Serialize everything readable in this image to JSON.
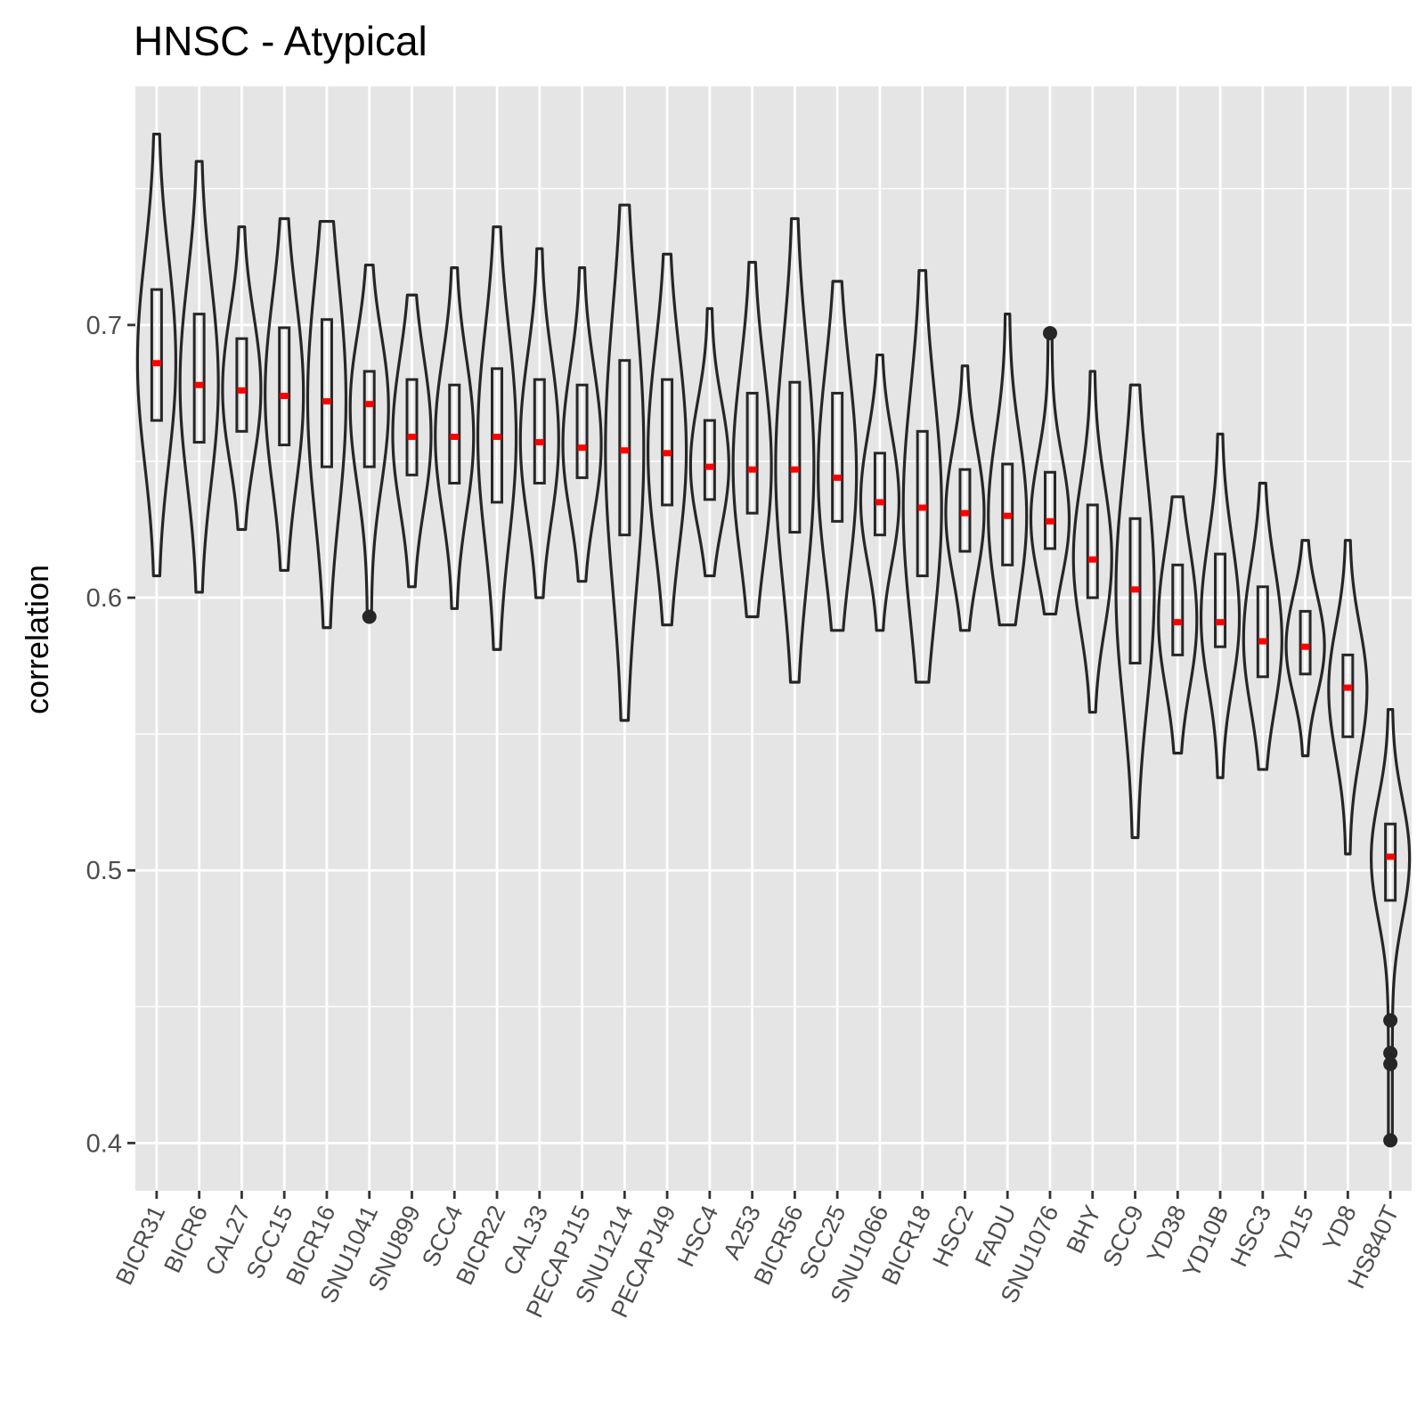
{
  "chart_data": {
    "type": "violin",
    "title": "HNSC - Atypical",
    "xlabel": "",
    "ylabel": "correlation",
    "ylim": [
      0.3825,
      0.7875
    ],
    "yticks": [
      0.4,
      0.5,
      0.6,
      0.7
    ],
    "ytick_labels": [
      "0.4",
      "0.5",
      "0.6",
      "0.7"
    ],
    "grid": true,
    "colors": {
      "panel": "#e5e5e5",
      "grid": "#ffffff",
      "outline": "#262626",
      "median": "#ff0000",
      "tick_text": "#4d4d4d"
    },
    "categories": [
      "BICR31",
      "BICR6",
      "CAL27",
      "SCC15",
      "BICR16",
      "SNU1041",
      "SNU899",
      "SCC4",
      "BICR22",
      "CAL33",
      "PECAPJ15",
      "SNU1214",
      "PECAPJ49",
      "HSC4",
      "A253",
      "BICR56",
      "SCC25",
      "SNU1066",
      "BICR18",
      "HSC2",
      "FADU",
      "SNU1076",
      "BHY",
      "SCC9",
      "YD38",
      "YD10B",
      "HSC3",
      "YD15",
      "YD8",
      "HS840T"
    ],
    "series": [
      {
        "min": 0.608,
        "max": 0.77,
        "q1": 0.665,
        "median": 0.686,
        "q3": 0.713,
        "outliers": []
      },
      {
        "min": 0.602,
        "max": 0.76,
        "q1": 0.657,
        "median": 0.678,
        "q3": 0.704,
        "outliers": []
      },
      {
        "min": 0.625,
        "max": 0.736,
        "q1": 0.661,
        "median": 0.676,
        "q3": 0.695,
        "outliers": []
      },
      {
        "min": 0.61,
        "max": 0.739,
        "q1": 0.656,
        "median": 0.674,
        "q3": 0.699,
        "outliers": []
      },
      {
        "min": 0.589,
        "max": 0.738,
        "q1": 0.648,
        "median": 0.672,
        "q3": 0.702,
        "outliers": []
      },
      {
        "min": 0.593,
        "max": 0.722,
        "q1": 0.648,
        "median": 0.671,
        "q3": 0.683,
        "outliers": [
          0.593
        ]
      },
      {
        "min": 0.604,
        "max": 0.711,
        "q1": 0.645,
        "median": 0.659,
        "q3": 0.68,
        "outliers": []
      },
      {
        "min": 0.596,
        "max": 0.721,
        "q1": 0.642,
        "median": 0.659,
        "q3": 0.678,
        "outliers": []
      },
      {
        "min": 0.581,
        "max": 0.736,
        "q1": 0.635,
        "median": 0.659,
        "q3": 0.684,
        "outliers": []
      },
      {
        "min": 0.6,
        "max": 0.728,
        "q1": 0.642,
        "median": 0.657,
        "q3": 0.68,
        "outliers": []
      },
      {
        "min": 0.606,
        "max": 0.721,
        "q1": 0.644,
        "median": 0.655,
        "q3": 0.678,
        "outliers": []
      },
      {
        "min": 0.555,
        "max": 0.744,
        "q1": 0.623,
        "median": 0.654,
        "q3": 0.687,
        "outliers": []
      },
      {
        "min": 0.59,
        "max": 0.726,
        "q1": 0.634,
        "median": 0.653,
        "q3": 0.68,
        "outliers": []
      },
      {
        "min": 0.608,
        "max": 0.706,
        "q1": 0.636,
        "median": 0.648,
        "q3": 0.665,
        "outliers": []
      },
      {
        "min": 0.593,
        "max": 0.723,
        "q1": 0.631,
        "median": 0.647,
        "q3": 0.675,
        "outliers": []
      },
      {
        "min": 0.569,
        "max": 0.739,
        "q1": 0.624,
        "median": 0.647,
        "q3": 0.679,
        "outliers": []
      },
      {
        "min": 0.588,
        "max": 0.716,
        "q1": 0.628,
        "median": 0.644,
        "q3": 0.675,
        "outliers": []
      },
      {
        "min": 0.588,
        "max": 0.689,
        "q1": 0.623,
        "median": 0.635,
        "q3": 0.653,
        "outliers": []
      },
      {
        "min": 0.569,
        "max": 0.72,
        "q1": 0.608,
        "median": 0.633,
        "q3": 0.661,
        "outliers": []
      },
      {
        "min": 0.588,
        "max": 0.685,
        "q1": 0.617,
        "median": 0.631,
        "q3": 0.647,
        "outliers": []
      },
      {
        "min": 0.59,
        "max": 0.704,
        "q1": 0.612,
        "median": 0.63,
        "q3": 0.649,
        "outliers": []
      },
      {
        "min": 0.594,
        "max": 0.697,
        "q1": 0.618,
        "median": 0.628,
        "q3": 0.646,
        "outliers": [
          0.697
        ]
      },
      {
        "min": 0.558,
        "max": 0.683,
        "q1": 0.6,
        "median": 0.614,
        "q3": 0.634,
        "outliers": []
      },
      {
        "min": 0.512,
        "max": 0.678,
        "q1": 0.576,
        "median": 0.603,
        "q3": 0.629,
        "outliers": []
      },
      {
        "min": 0.543,
        "max": 0.637,
        "q1": 0.579,
        "median": 0.591,
        "q3": 0.612,
        "outliers": []
      },
      {
        "min": 0.534,
        "max": 0.66,
        "q1": 0.582,
        "median": 0.591,
        "q3": 0.616,
        "outliers": []
      },
      {
        "min": 0.537,
        "max": 0.642,
        "q1": 0.571,
        "median": 0.584,
        "q3": 0.604,
        "outliers": []
      },
      {
        "min": 0.542,
        "max": 0.621,
        "q1": 0.572,
        "median": 0.582,
        "q3": 0.595,
        "outliers": []
      },
      {
        "min": 0.506,
        "max": 0.621,
        "q1": 0.549,
        "median": 0.567,
        "q3": 0.579,
        "outliers": []
      },
      {
        "min": 0.401,
        "max": 0.559,
        "q1": 0.489,
        "median": 0.505,
        "q3": 0.517,
        "outliers": [
          0.445,
          0.433,
          0.429,
          0.401
        ]
      }
    ]
  }
}
